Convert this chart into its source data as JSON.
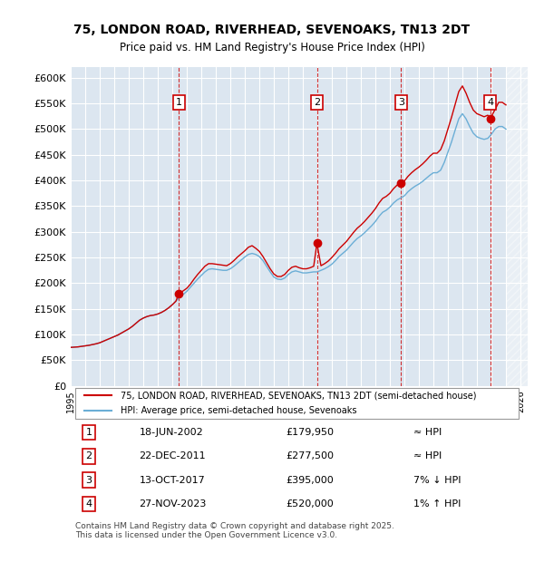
{
  "title": "75, LONDON ROAD, RIVERHEAD, SEVENOAKS, TN13 2DT",
  "subtitle": "Price paid vs. HM Land Registry's House Price Index (HPI)",
  "ylim": [
    0,
    620000
  ],
  "yticks": [
    0,
    50000,
    100000,
    150000,
    200000,
    250000,
    300000,
    350000,
    400000,
    450000,
    500000,
    550000,
    600000
  ],
  "ytick_labels": [
    "£0",
    "£50K",
    "£100K",
    "£150K",
    "£200K",
    "£250K",
    "£300K",
    "£350K",
    "£400K",
    "£450K",
    "£500K",
    "£550K",
    "£600K"
  ],
  "xlim_start": 1995.0,
  "xlim_end": 2026.5,
  "background_color": "#dce6f0",
  "plot_bg_color": "#dce6f0",
  "grid_color": "#ffffff",
  "hpi_color": "#6baed6",
  "price_color": "#cc0000",
  "transaction_marker_color": "#cc0000",
  "sale_dates": [
    2002.46,
    2011.97,
    2017.78,
    2023.91
  ],
  "sale_prices": [
    179950,
    277500,
    395000,
    520000
  ],
  "sale_labels": [
    "1",
    "2",
    "3",
    "4"
  ],
  "legend_line1": "75, LONDON ROAD, RIVERHEAD, SEVENOAKS, TN13 2DT (semi-detached house)",
  "legend_line2": "HPI: Average price, semi-detached house, Sevenoaks",
  "table_rows": [
    [
      "1",
      "18-JUN-2002",
      "£179,950",
      "≈ HPI"
    ],
    [
      "2",
      "22-DEC-2011",
      "£277,500",
      "≈ HPI"
    ],
    [
      "3",
      "13-OCT-2017",
      "£395,000",
      "7% ↓ HPI"
    ],
    [
      "4",
      "27-NOV-2023",
      "£520,000",
      "1% ↑ HPI"
    ]
  ],
  "footer": "Contains HM Land Registry data © Crown copyright and database right 2025.\nThis data is licensed under the Open Government Licence v3.0.",
  "hpi_data_x": [
    1995.0,
    1995.25,
    1995.5,
    1995.75,
    1996.0,
    1996.25,
    1996.5,
    1996.75,
    1997.0,
    1997.25,
    1997.5,
    1997.75,
    1998.0,
    1998.25,
    1998.5,
    1998.75,
    1999.0,
    1999.25,
    1999.5,
    1999.75,
    2000.0,
    2000.25,
    2000.5,
    2000.75,
    2001.0,
    2001.25,
    2001.5,
    2001.75,
    2002.0,
    2002.25,
    2002.5,
    2002.75,
    2003.0,
    2003.25,
    2003.5,
    2003.75,
    2004.0,
    2004.25,
    2004.5,
    2004.75,
    2005.0,
    2005.25,
    2005.5,
    2005.75,
    2006.0,
    2006.25,
    2006.5,
    2006.75,
    2007.0,
    2007.25,
    2007.5,
    2007.75,
    2008.0,
    2008.25,
    2008.5,
    2008.75,
    2009.0,
    2009.25,
    2009.5,
    2009.75,
    2010.0,
    2010.25,
    2010.5,
    2010.75,
    2011.0,
    2011.25,
    2011.5,
    2011.75,
    2012.0,
    2012.25,
    2012.5,
    2012.75,
    2013.0,
    2013.25,
    2013.5,
    2013.75,
    2014.0,
    2014.25,
    2014.5,
    2014.75,
    2015.0,
    2015.25,
    2015.5,
    2015.75,
    2016.0,
    2016.25,
    2016.5,
    2016.75,
    2017.0,
    2017.25,
    2017.5,
    2017.75,
    2018.0,
    2018.25,
    2018.5,
    2018.75,
    2019.0,
    2019.25,
    2019.5,
    2019.75,
    2020.0,
    2020.25,
    2020.5,
    2020.75,
    2021.0,
    2021.25,
    2021.5,
    2021.75,
    2022.0,
    2022.25,
    2022.5,
    2022.75,
    2023.0,
    2023.25,
    2023.5,
    2023.75,
    2024.0,
    2024.25,
    2024.5,
    2024.75,
    2025.0
  ],
  "hpi_data_y": [
    75000,
    75500,
    76000,
    77000,
    78000,
    79000,
    80500,
    82000,
    84000,
    87000,
    90000,
    93000,
    96000,
    99000,
    103000,
    107000,
    111000,
    116000,
    122000,
    128000,
    132000,
    135000,
    137000,
    138000,
    140000,
    143000,
    147000,
    152000,
    158000,
    165000,
    172000,
    178000,
    184000,
    192000,
    200000,
    208000,
    215000,
    222000,
    227000,
    228000,
    227000,
    226000,
    225000,
    225000,
    228000,
    233000,
    239000,
    245000,
    251000,
    256000,
    258000,
    256000,
    252000,
    244000,
    233000,
    222000,
    212000,
    208000,
    207000,
    210000,
    217000,
    222000,
    224000,
    222000,
    220000,
    220000,
    221000,
    222000,
    222000,
    225000,
    228000,
    232000,
    237000,
    244000,
    252000,
    258000,
    264000,
    272000,
    280000,
    287000,
    292000,
    298000,
    305000,
    312000,
    320000,
    330000,
    338000,
    342000,
    348000,
    356000,
    362000,
    366000,
    370000,
    378000,
    384000,
    389000,
    393000,
    398000,
    404000,
    410000,
    415000,
    415000,
    420000,
    435000,
    455000,
    475000,
    498000,
    520000,
    530000,
    520000,
    505000,
    492000,
    485000,
    482000,
    480000,
    482000,
    490000,
    500000,
    505000,
    505000,
    500000
  ],
  "price_line_x": [
    1995.0,
    1995.25,
    1995.5,
    1995.75,
    1996.0,
    1996.25,
    1996.5,
    1996.75,
    1997.0,
    1997.25,
    1997.5,
    1997.75,
    1998.0,
    1998.25,
    1998.5,
    1998.75,
    1999.0,
    1999.25,
    1999.5,
    1999.75,
    2000.0,
    2000.25,
    2000.5,
    2000.75,
    2001.0,
    2001.25,
    2001.5,
    2001.75,
    2002.0,
    2002.25,
    2002.46,
    2002.75,
    2003.0,
    2003.25,
    2003.5,
    2003.75,
    2004.0,
    2004.25,
    2004.5,
    2004.75,
    2005.0,
    2005.25,
    2005.5,
    2005.75,
    2006.0,
    2006.25,
    2006.5,
    2006.75,
    2007.0,
    2007.25,
    2007.5,
    2007.75,
    2008.0,
    2008.25,
    2008.5,
    2008.75,
    2009.0,
    2009.25,
    2009.5,
    2009.75,
    2010.0,
    2010.25,
    2010.5,
    2010.75,
    2011.0,
    2011.25,
    2011.5,
    2011.75,
    2011.97,
    2012.25,
    2012.5,
    2012.75,
    2013.0,
    2013.25,
    2013.5,
    2013.75,
    2014.0,
    2014.25,
    2014.5,
    2014.75,
    2015.0,
    2015.25,
    2015.5,
    2015.75,
    2016.0,
    2016.25,
    2016.5,
    2016.75,
    2017.0,
    2017.25,
    2017.5,
    2017.78,
    2018.0,
    2018.25,
    2018.5,
    2018.75,
    2019.0,
    2019.25,
    2019.5,
    2019.75,
    2020.0,
    2020.25,
    2020.5,
    2020.75,
    2021.0,
    2021.25,
    2021.5,
    2021.75,
    2022.0,
    2022.25,
    2022.5,
    2022.75,
    2023.0,
    2023.25,
    2023.5,
    2023.75,
    2023.91,
    2024.25,
    2024.5,
    2024.75,
    2025.0
  ],
  "price_line_y": [
    75000,
    75500,
    76000,
    77000,
    78000,
    79000,
    80500,
    82000,
    84000,
    87000,
    90000,
    93000,
    96000,
    99000,
    103000,
    107000,
    111000,
    116000,
    122000,
    128000,
    132000,
    135000,
    137000,
    138000,
    140000,
    143000,
    147000,
    152000,
    158000,
    165000,
    179950,
    185000,
    190000,
    198000,
    208000,
    217000,
    225000,
    233000,
    238000,
    238000,
    237000,
    236000,
    235000,
    234000,
    238000,
    244000,
    251000,
    257000,
    263000,
    270000,
    273000,
    268000,
    262000,
    252000,
    240000,
    228000,
    218000,
    213000,
    213000,
    217000,
    225000,
    231000,
    233000,
    230000,
    228000,
    228000,
    230000,
    233000,
    277500,
    234000,
    238000,
    243000,
    250000,
    258000,
    267000,
    274000,
    281000,
    290000,
    299000,
    307000,
    313000,
    320000,
    328000,
    336000,
    345000,
    356000,
    365000,
    369000,
    375000,
    384000,
    391000,
    395000,
    399000,
    408000,
    415000,
    421000,
    426000,
    432000,
    439000,
    447000,
    453000,
    453000,
    460000,
    477000,
    500000,
    523000,
    548000,
    573000,
    584000,
    570000,
    552000,
    537000,
    530000,
    527000,
    524000,
    527000,
    520000,
    538000,
    552000,
    552000,
    547000
  ]
}
